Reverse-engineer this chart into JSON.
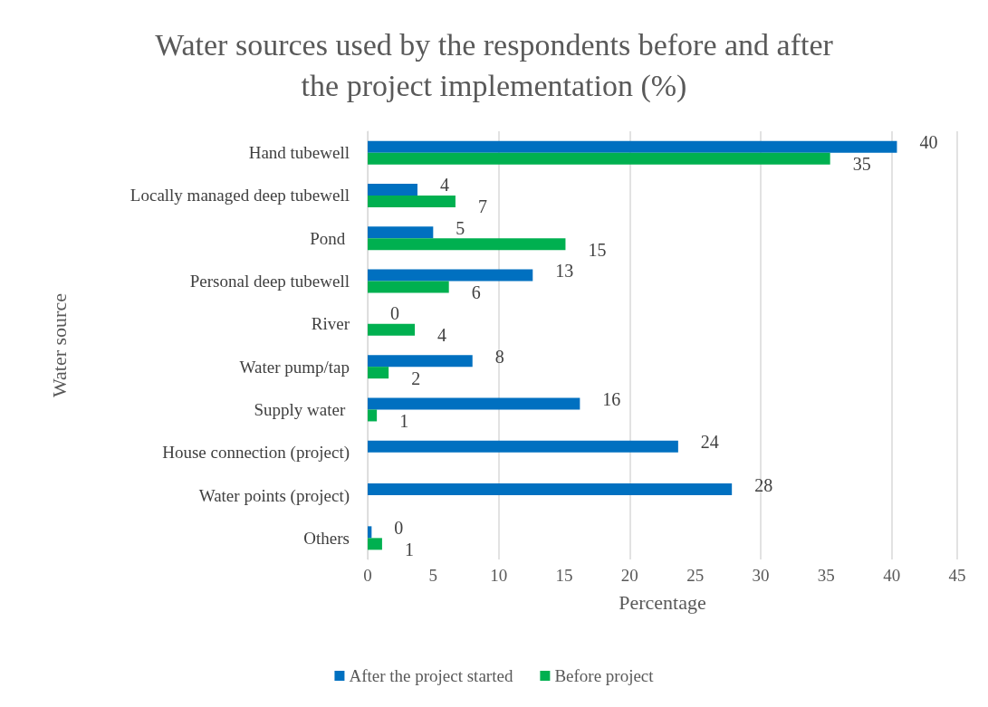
{
  "chart_data": {
    "type": "bar",
    "orientation": "horizontal",
    "title": "Water sources used by the respondents before and after\nthe project implementation (%)",
    "xlabel": "Percentage",
    "ylabel": "Water source",
    "categories": [
      "Hand tubewell",
      "Locally managed deep tubewell",
      "Pond ",
      "Personal deep tubewell",
      "River",
      "Water pump/tap",
      "Supply water ",
      "House connection (project)",
      "Water points (project)",
      "Others"
    ],
    "series": [
      {
        "name": "After the project started",
        "color": "#0070c0",
        "values": [
          40.4,
          3.8,
          5.0,
          12.6,
          0,
          8.0,
          16.2,
          23.7,
          27.8,
          0.3
        ],
        "value_labels": [
          "40",
          "4",
          "5",
          "13",
          "0",
          "8",
          "16",
          "24",
          "28",
          "0"
        ]
      },
      {
        "name": "Before project",
        "color": "#00b050",
        "values": [
          35.3,
          6.7,
          15.1,
          6.2,
          3.6,
          1.6,
          0.7,
          null,
          null,
          1.1
        ],
        "value_labels": [
          "35",
          "7",
          "15",
          "6",
          "4",
          "2",
          "1",
          null,
          null,
          "1"
        ]
      }
    ],
    "xlim": [
      0,
      45
    ],
    "xticks": [
      0,
      5,
      10,
      15,
      20,
      25,
      30,
      35,
      40,
      45
    ],
    "grid": "x",
    "legend": "bottom"
  }
}
